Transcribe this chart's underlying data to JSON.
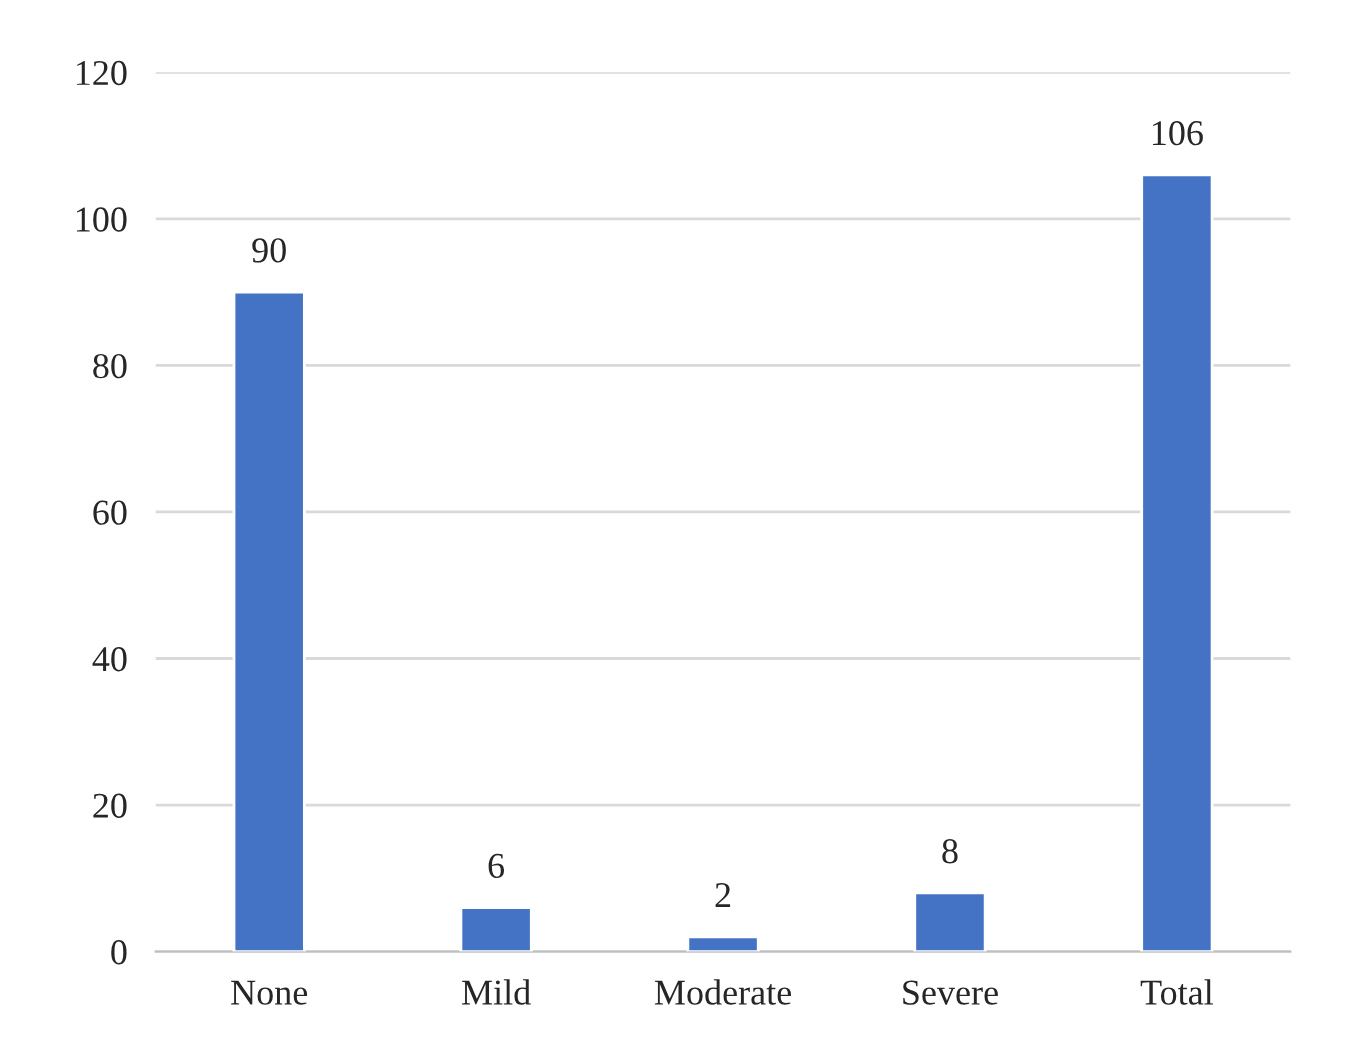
{
  "chart_data": {
    "type": "bar",
    "categories": [
      "None",
      "Mild",
      "Moderate",
      "Severe",
      "Total"
    ],
    "values": [
      90,
      6,
      2,
      8,
      106
    ],
    "color": "#4472c4",
    "ylim": [
      0,
      120
    ],
    "yticks": [
      0,
      20,
      40,
      60,
      80,
      100,
      120
    ],
    "grid": "y",
    "data_labels": true
  }
}
